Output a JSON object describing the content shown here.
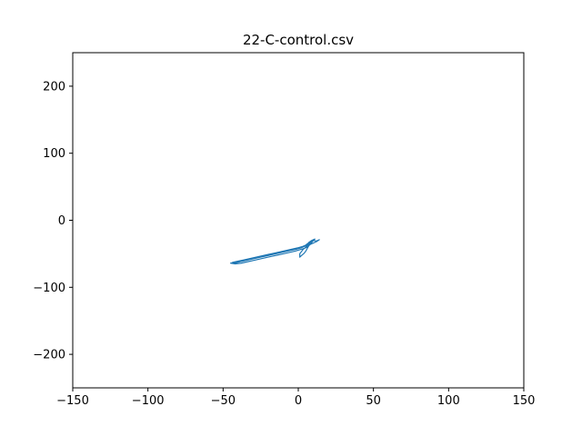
{
  "chart_data": {
    "type": "line",
    "title": "22-C-control.csv",
    "xlabel": "",
    "ylabel": "",
    "xlim": [
      -150,
      150
    ],
    "ylim": [
      -250,
      250
    ],
    "x_ticks": [
      -150,
      -100,
      -50,
      0,
      50,
      100,
      150
    ],
    "y_ticks": [
      -200,
      -100,
      0,
      100,
      200
    ],
    "x_tick_labels": [
      "−150",
      "−100",
      "−50",
      "0",
      "50",
      "100",
      "150"
    ],
    "y_tick_labels": [
      "−200",
      "−100",
      "0",
      "100",
      "200"
    ],
    "grid": false,
    "series": [
      {
        "color": "#1f77b4",
        "x": [
          -44,
          -40,
          -36,
          -32,
          -28,
          -24,
          -20,
          -16,
          -12,
          -8,
          -4,
          0,
          3,
          5,
          6,
          8,
          9,
          10,
          12,
          14,
          12,
          10,
          8,
          7,
          6,
          4,
          1,
          -2,
          -6,
          -10,
          -14,
          -18,
          -22,
          -26,
          -30,
          -34,
          -38,
          -42,
          -45,
          -41,
          -37,
          -33,
          -29,
          -25,
          -21,
          -17,
          -13,
          -9,
          -5,
          -1,
          2,
          4,
          6,
          7,
          9,
          11,
          8,
          5,
          3,
          2,
          1,
          1,
          2,
          4,
          5,
          6,
          7,
          8,
          6,
          4,
          2,
          -1,
          -5,
          -9,
          -13,
          -17,
          -21,
          -25,
          -29,
          -33,
          -37,
          -41,
          -43,
          -39,
          -35,
          -31,
          -27,
          -23,
          -19,
          -15,
          -11,
          -7,
          -3,
          0,
          3,
          5,
          7,
          9,
          10
        ],
        "y": [
          -63,
          -61,
          -59,
          -57,
          -55,
          -53,
          -51,
          -49,
          -47,
          -45,
          -43,
          -41,
          -39,
          -37,
          -35,
          -33,
          -31,
          -30,
          -31,
          -29,
          -32,
          -34,
          -36,
          -38,
          -40,
          -42,
          -44,
          -46,
          -48,
          -50,
          -52,
          -54,
          -56,
          -58,
          -60,
          -62,
          -64,
          -65,
          -64,
          -62,
          -60,
          -58,
          -56,
          -54,
          -52,
          -50,
          -48,
          -46,
          -44,
          -42,
          -40,
          -38,
          -36,
          -33,
          -30,
          -28,
          -35,
          -40,
          -44,
          -47,
          -50,
          -55,
          -53,
          -49,
          -46,
          -42,
          -38,
          -34,
          -37,
          -39,
          -41,
          -43,
          -45,
          -47,
          -49,
          -51,
          -53,
          -55,
          -57,
          -59,
          -61,
          -63,
          -64,
          -62,
          -60,
          -58,
          -56,
          -54,
          -52,
          -50,
          -48,
          -46,
          -44,
          -42,
          -40,
          -38,
          -36,
          -33,
          -30
        ]
      }
    ]
  }
}
